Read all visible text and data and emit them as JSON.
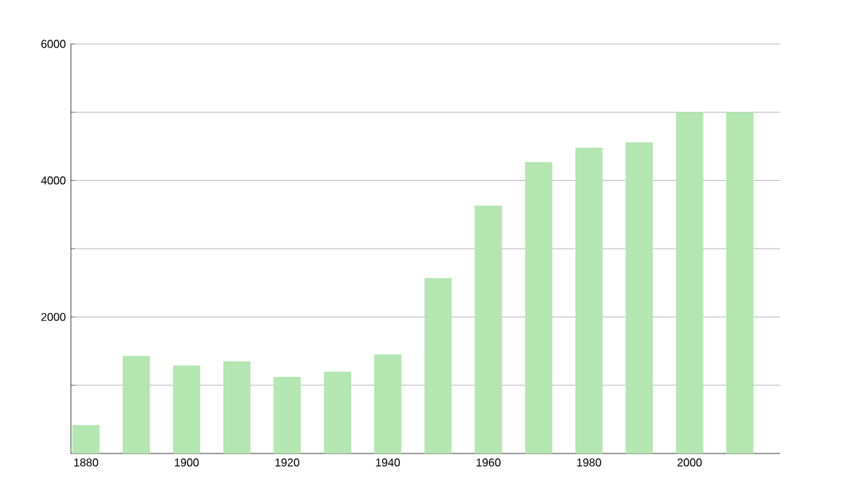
{
  "chart_data": {
    "type": "bar",
    "x": [
      1880,
      1890,
      1900,
      1910,
      1920,
      1930,
      1940,
      1950,
      1960,
      1970,
      1980,
      1990,
      2000,
      2010
    ],
    "values": [
      415,
      1430,
      1290,
      1350,
      1120,
      1200,
      1450,
      2570,
      3630,
      4270,
      4480,
      4560,
      5000,
      5000
    ],
    "color": "#b3e6b0",
    "xlim": [
      1877,
      2018
    ],
    "xticks": [
      1880,
      1900,
      1920,
      1940,
      1960,
      1980,
      2000
    ],
    "ylim": [
      0,
      6000
    ],
    "yticks": [
      {
        "value": 1000,
        "label": null
      },
      2000,
      {
        "value": 3000,
        "label": null
      },
      4000,
      {
        "value": 5000,
        "label": null
      },
      6000
    ],
    "grid": "y"
  }
}
